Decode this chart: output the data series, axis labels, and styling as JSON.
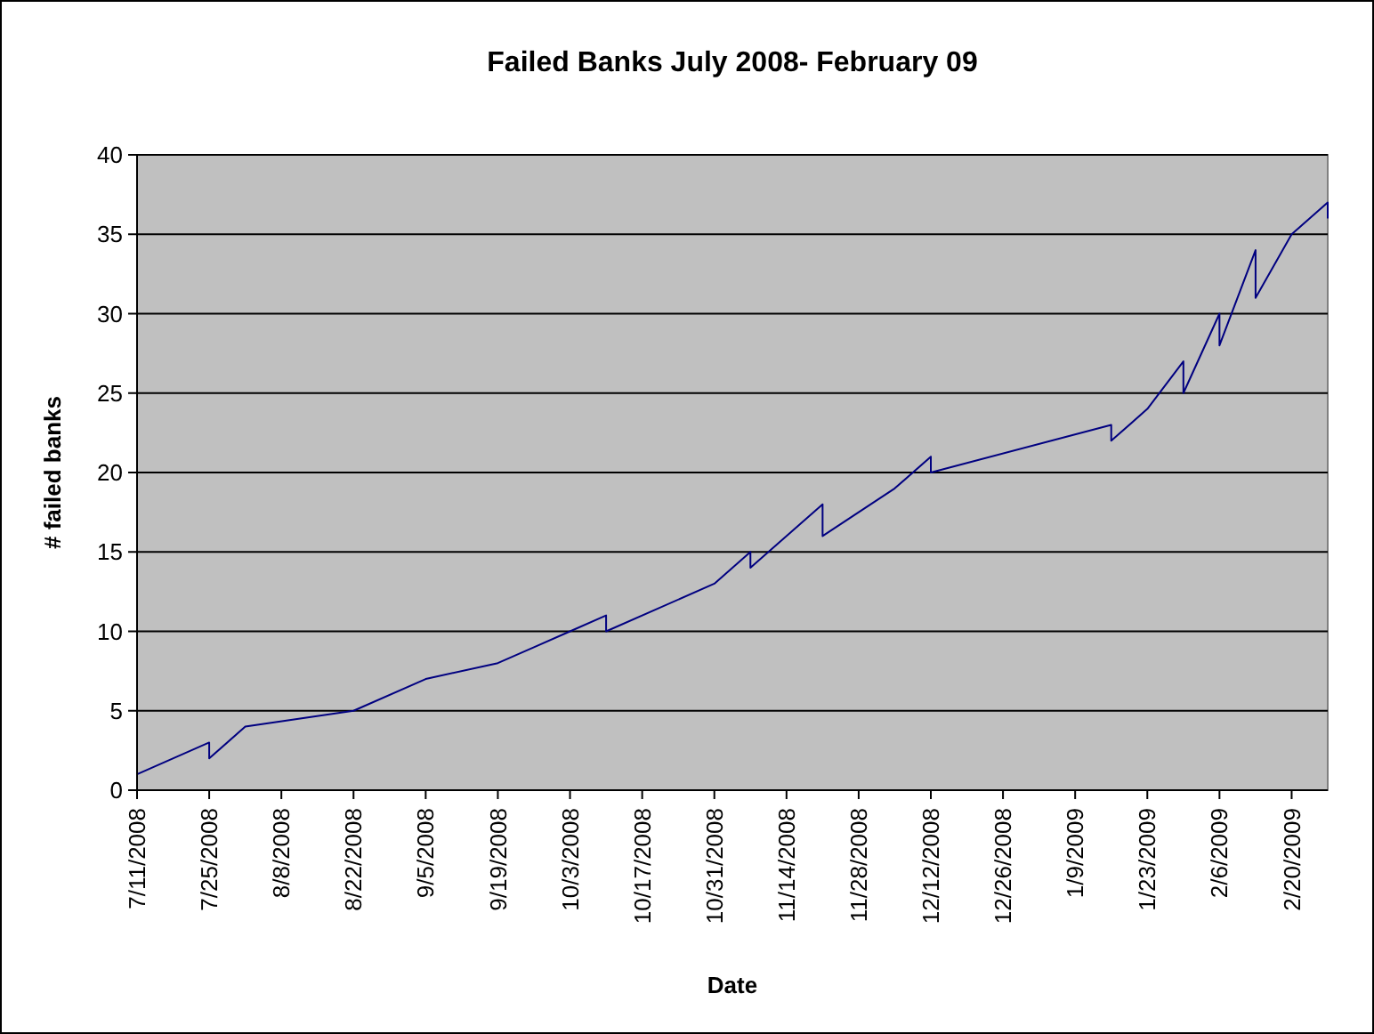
{
  "chart_data": {
    "type": "line",
    "title": "Failed Banks July 2008- February 09",
    "xlabel": "Date",
    "ylabel": "# failed banks",
    "x": [
      "2008-07-11",
      "2008-07-25",
      "2008-07-25",
      "2008-08-01",
      "2008-08-22",
      "2008-09-05",
      "2008-09-19",
      "2008-09-26",
      "2008-10-03",
      "2008-10-10",
      "2008-10-10",
      "2008-10-31",
      "2008-11-07",
      "2008-11-07",
      "2008-11-21",
      "2008-11-21",
      "2008-12-05",
      "2008-12-12",
      "2008-12-12",
      "2009-01-16",
      "2009-01-16",
      "2009-01-23",
      "2009-01-30",
      "2009-01-30",
      "2009-02-06",
      "2009-02-06",
      "2009-02-13",
      "2009-02-13",
      "2009-02-20",
      "2009-02-27",
      "2009-02-27"
    ],
    "series": [
      {
        "color": "#000080",
        "values": [
          1,
          3,
          2,
          4,
          5,
          7,
          8,
          9,
          10,
          11,
          10,
          13,
          15,
          14,
          18,
          16,
          19,
          21,
          20,
          23,
          22,
          24,
          27,
          25,
          30,
          28,
          34,
          31,
          35,
          37,
          36
        ]
      }
    ],
    "xlim": [
      "2008-07-11",
      "2009-02-27"
    ],
    "xticks": [
      {
        "value": "2008-07-11",
        "label": "7/11/2008"
      },
      {
        "value": "2008-07-25",
        "label": "7/25/2008"
      },
      {
        "value": "2008-08-08",
        "label": "8/8/2008"
      },
      {
        "value": "2008-08-22",
        "label": "8/22/2008"
      },
      {
        "value": "2008-09-05",
        "label": "9/5/2008"
      },
      {
        "value": "2008-09-19",
        "label": "9/19/2008"
      },
      {
        "value": "2008-10-03",
        "label": "10/3/2008"
      },
      {
        "value": "2008-10-17",
        "label": "10/17/2008"
      },
      {
        "value": "2008-10-31",
        "label": "10/31/2008"
      },
      {
        "value": "2008-11-14",
        "label": "11/14/2008"
      },
      {
        "value": "2008-11-28",
        "label": "11/28/2008"
      },
      {
        "value": "2008-12-12",
        "label": "12/12/2008"
      },
      {
        "value": "2008-12-26",
        "label": "12/26/2008"
      },
      {
        "value": "2009-01-09",
        "label": "1/9/2009"
      },
      {
        "value": "2009-01-23",
        "label": "1/23/2009"
      },
      {
        "value": "2009-02-06",
        "label": "2/6/2009"
      },
      {
        "value": "2009-02-20",
        "label": "2/20/2009"
      }
    ],
    "ylim": [
      0,
      40
    ],
    "yticks": [
      0,
      5,
      10,
      15,
      20,
      25,
      30,
      35,
      40
    ],
    "grid": "y",
    "marker": "none",
    "line_style": "solid"
  }
}
